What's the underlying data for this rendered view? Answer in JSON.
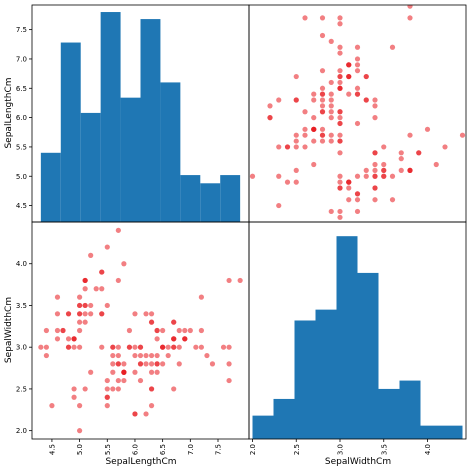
{
  "chart_data": {
    "type": "scatter-matrix",
    "variables": [
      "SepalLengthCm",
      "SepalWidthCm"
    ],
    "colors": {
      "hist": "#1f77b4",
      "points": "#e8151b"
    },
    "grid": false,
    "panels": [
      {
        "id": "hist-sepal-length",
        "type": "bar",
        "variable": "SepalLengthCm",
        "bins": [
          4.3,
          4.66,
          5.02,
          5.38,
          5.74,
          6.1,
          6.46,
          6.82,
          7.18,
          7.54,
          7.9
        ],
        "values": [
          5.4,
          7.28,
          6.08,
          7.8,
          6.34,
          7.68,
          6.6,
          5.02,
          4.88,
          5.02
        ],
        "xlim": [
          4.14,
          8.06
        ],
        "ylim": [
          4.22,
          7.92
        ]
      },
      {
        "id": "scatter-width-vs-length-top",
        "type": "scatter",
        "x_variable": "SepalWidthCm",
        "y_variable": "SepalLengthCm",
        "xlim": [
          1.96,
          4.44
        ],
        "ylim": [
          4.22,
          7.92
        ]
      },
      {
        "id": "scatter-length-vs-width-bottom",
        "type": "scatter",
        "x_variable": "SepalLengthCm",
        "y_variable": "SepalWidthCm",
        "xlim": [
          4.14,
          8.06
        ],
        "ylim": [
          1.9,
          4.5
        ]
      },
      {
        "id": "hist-sepal-width",
        "type": "bar",
        "variable": "SepalWidthCm",
        "bins": [
          2.0,
          2.24,
          2.48,
          2.72,
          2.96,
          3.2,
          3.44,
          3.68,
          3.92,
          4.16,
          4.4
        ],
        "values": [
          2.18,
          2.38,
          3.32,
          3.45,
          4.33,
          3.89,
          2.5,
          2.6,
          2.06,
          2.06
        ],
        "xlim": [
          1.96,
          4.44
        ],
        "ylim": [
          1.9,
          4.5
        ]
      }
    ],
    "points": [
      [
        5.1,
        3.5
      ],
      [
        4.9,
        3.0
      ],
      [
        4.7,
        3.2
      ],
      [
        4.6,
        3.1
      ],
      [
        5.0,
        3.6
      ],
      [
        5.4,
        3.9
      ],
      [
        4.6,
        3.4
      ],
      [
        5.0,
        3.4
      ],
      [
        4.4,
        2.9
      ],
      [
        4.9,
        3.1
      ],
      [
        5.4,
        3.7
      ],
      [
        4.8,
        3.4
      ],
      [
        4.8,
        3.0
      ],
      [
        4.3,
        3.0
      ],
      [
        5.8,
        4.0
      ],
      [
        5.7,
        4.4
      ],
      [
        5.4,
        3.9
      ],
      [
        5.1,
        3.5
      ],
      [
        5.7,
        3.8
      ],
      [
        5.1,
        3.8
      ],
      [
        5.4,
        3.4
      ],
      [
        5.1,
        3.7
      ],
      [
        4.6,
        3.6
      ],
      [
        5.1,
        3.3
      ],
      [
        4.8,
        3.4
      ],
      [
        5.0,
        3.0
      ],
      [
        5.0,
        3.4
      ],
      [
        5.2,
        3.5
      ],
      [
        5.2,
        3.4
      ],
      [
        4.7,
        3.2
      ],
      [
        4.8,
        3.1
      ],
      [
        5.4,
        3.4
      ],
      [
        5.2,
        4.1
      ],
      [
        5.5,
        4.2
      ],
      [
        4.9,
        3.1
      ],
      [
        5.0,
        3.2
      ],
      [
        5.5,
        3.5
      ],
      [
        4.9,
        3.1
      ],
      [
        4.4,
        3.0
      ],
      [
        5.1,
        3.4
      ],
      [
        5.0,
        3.5
      ],
      [
        4.5,
        2.3
      ],
      [
        4.4,
        3.2
      ],
      [
        5.0,
        3.5
      ],
      [
        5.1,
        3.8
      ],
      [
        4.8,
        3.0
      ],
      [
        5.1,
        3.8
      ],
      [
        4.6,
        3.2
      ],
      [
        5.3,
        3.7
      ],
      [
        5.0,
        3.3
      ],
      [
        7.0,
        3.2
      ],
      [
        6.4,
        3.2
      ],
      [
        6.9,
        3.1
      ],
      [
        5.5,
        2.3
      ],
      [
        6.5,
        2.8
      ],
      [
        5.7,
        2.8
      ],
      [
        6.3,
        3.3
      ],
      [
        4.9,
        2.4
      ],
      [
        6.6,
        2.9
      ],
      [
        5.2,
        2.7
      ],
      [
        5.0,
        2.0
      ],
      [
        5.9,
        3.0
      ],
      [
        6.0,
        2.2
      ],
      [
        6.1,
        2.9
      ],
      [
        5.6,
        2.9
      ],
      [
        6.7,
        3.1
      ],
      [
        5.6,
        3.0
      ],
      [
        5.8,
        2.7
      ],
      [
        6.2,
        2.2
      ],
      [
        5.6,
        2.5
      ],
      [
        5.9,
        3.2
      ],
      [
        6.1,
        2.8
      ],
      [
        6.3,
        2.5
      ],
      [
        6.1,
        2.8
      ],
      [
        6.4,
        2.9
      ],
      [
        6.6,
        3.0
      ],
      [
        6.8,
        2.8
      ],
      [
        6.7,
        3.0
      ],
      [
        6.0,
        2.9
      ],
      [
        5.7,
        2.6
      ],
      [
        5.5,
        2.4
      ],
      [
        5.5,
        2.4
      ],
      [
        5.8,
        2.7
      ],
      [
        6.0,
        2.7
      ],
      [
        5.4,
        3.0
      ],
      [
        6.0,
        3.4
      ],
      [
        6.7,
        3.1
      ],
      [
        6.3,
        2.3
      ],
      [
        5.6,
        3.0
      ],
      [
        5.5,
        2.5
      ],
      [
        5.5,
        2.6
      ],
      [
        6.1,
        3.0
      ],
      [
        5.8,
        2.6
      ],
      [
        5.0,
        2.3
      ],
      [
        5.6,
        2.7
      ],
      [
        5.7,
        3.0
      ],
      [
        5.7,
        2.9
      ],
      [
        6.2,
        2.9
      ],
      [
        5.1,
        2.5
      ],
      [
        5.7,
        2.8
      ],
      [
        6.3,
        3.3
      ],
      [
        5.8,
        2.7
      ],
      [
        7.1,
        3.0
      ],
      [
        6.3,
        2.9
      ],
      [
        6.5,
        3.0
      ],
      [
        7.6,
        3.0
      ],
      [
        4.9,
        2.5
      ],
      [
        7.3,
        2.9
      ],
      [
        6.7,
        2.5
      ],
      [
        7.2,
        3.6
      ],
      [
        6.5,
        3.2
      ],
      [
        6.4,
        2.7
      ],
      [
        6.8,
        3.0
      ],
      [
        5.7,
        2.5
      ],
      [
        5.8,
        2.8
      ],
      [
        6.4,
        3.2
      ],
      [
        6.5,
        3.0
      ],
      [
        7.7,
        3.8
      ],
      [
        7.7,
        2.6
      ],
      [
        6.0,
        2.2
      ],
      [
        6.9,
        3.2
      ],
      [
        5.6,
        2.8
      ],
      [
        7.7,
        2.8
      ],
      [
        6.3,
        2.7
      ],
      [
        6.7,
        3.3
      ],
      [
        7.2,
        3.2
      ],
      [
        6.2,
        2.8
      ],
      [
        6.1,
        3.0
      ],
      [
        6.4,
        2.8
      ],
      [
        7.2,
        3.0
      ],
      [
        7.4,
        2.8
      ],
      [
        7.9,
        3.8
      ],
      [
        6.4,
        2.8
      ],
      [
        6.3,
        2.8
      ],
      [
        6.1,
        2.6
      ],
      [
        7.7,
        3.0
      ],
      [
        6.3,
        3.4
      ],
      [
        6.4,
        3.1
      ],
      [
        6.0,
        3.0
      ],
      [
        6.9,
        3.1
      ],
      [
        6.7,
        3.1
      ],
      [
        6.9,
        3.1
      ],
      [
        5.8,
        2.7
      ],
      [
        6.8,
        3.2
      ],
      [
        6.7,
        3.3
      ],
      [
        6.7,
        3.0
      ],
      [
        6.3,
        2.5
      ],
      [
        6.5,
        3.0
      ],
      [
        6.2,
        3.4
      ],
      [
        5.9,
        3.0
      ]
    ],
    "ticks": {
      "SepalLengthCm": {
        "values": [
          4.5,
          5.0,
          5.5,
          6.0,
          6.5,
          7.0,
          7.5
        ],
        "labels": [
          "4.5",
          "5.0",
          "5.5",
          "6.0",
          "6.5",
          "7.0",
          "7.5"
        ]
      },
      "SepalWidthCm": {
        "values": [
          2.0,
          2.5,
          3.0,
          3.5,
          4.0
        ],
        "labels": [
          "2.0",
          "2.5",
          "3.0",
          "3.5",
          "4.0"
        ]
      }
    },
    "xlabels": [
      "SepalLengthCm",
      "SepalWidthCm"
    ],
    "ylabels": [
      "SepalLengthCm",
      "SepalWidthCm"
    ]
  }
}
